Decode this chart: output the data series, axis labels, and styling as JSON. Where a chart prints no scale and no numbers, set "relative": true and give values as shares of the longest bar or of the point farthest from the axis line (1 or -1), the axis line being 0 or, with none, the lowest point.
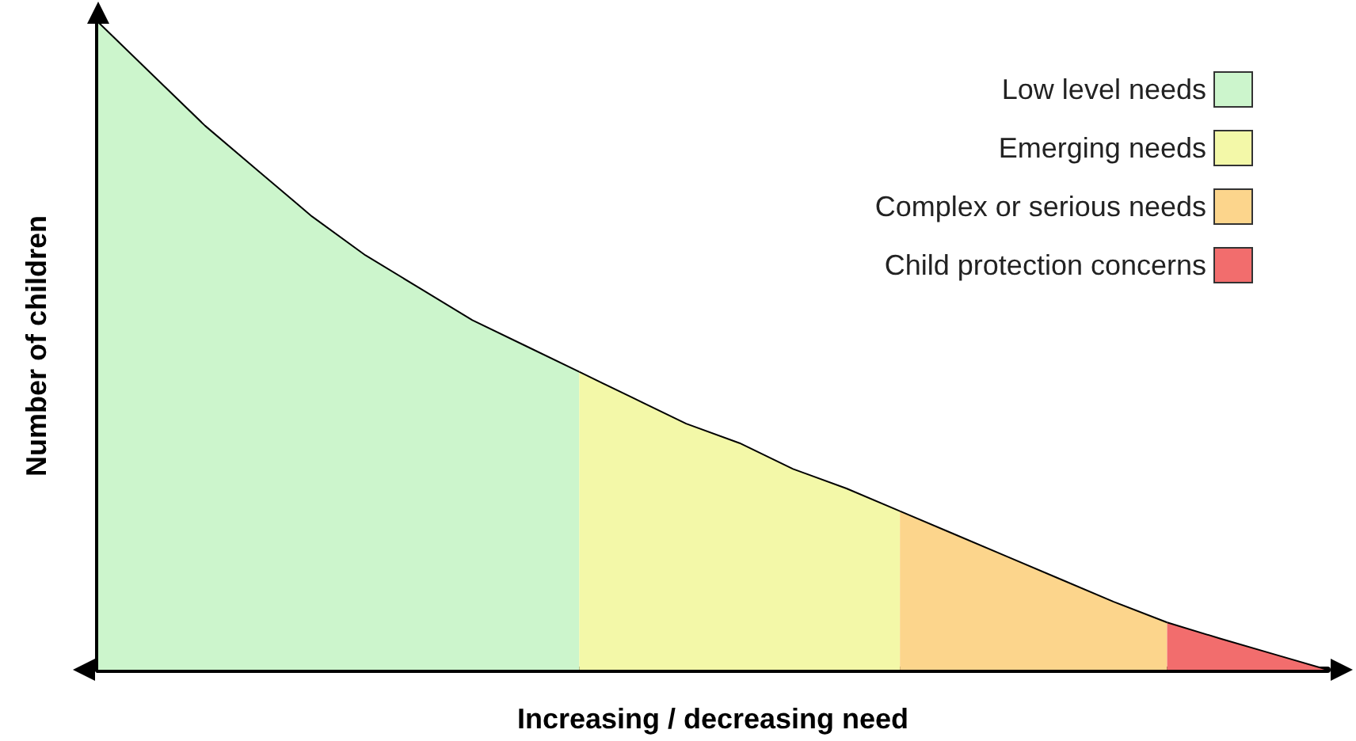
{
  "chart_data": {
    "type": "area",
    "relative": true,
    "xlabel": "Increasing / decreasing need",
    "ylabel": "Number of children",
    "legend": "top right",
    "grid": false,
    "marker": "none",
    "categories": [
      null,
      null,
      null,
      null,
      null,
      null,
      null,
      null,
      null,
      null,
      null,
      null,
      null,
      null,
      null,
      null,
      null,
      null,
      null,
      null,
      null,
      null,
      null,
      null
    ],
    "series": [
      {
        "name": "Low level needs",
        "color": "#ccf5cc",
        "values": [
          1.0,
          0.92,
          0.84,
          0.77,
          0.7,
          0.64,
          0.59,
          0.54,
          0.5,
          0.46,
          null,
          null,
          null,
          null,
          null,
          null,
          null,
          null,
          null,
          null,
          null,
          null,
          null,
          null
        ]
      },
      {
        "name": "Emerging needs",
        "color": "#f3f8a8",
        "values": [
          null,
          null,
          null,
          null,
          null,
          null,
          null,
          null,
          null,
          0.46,
          0.42,
          0.38,
          0.35,
          0.31,
          0.28,
          0.245,
          null,
          null,
          null,
          null,
          null,
          null,
          null,
          null
        ]
      },
      {
        "name": "Complex or serious needs",
        "color": "#fcd58c",
        "values": [
          null,
          null,
          null,
          null,
          null,
          null,
          null,
          null,
          null,
          null,
          null,
          null,
          null,
          null,
          null,
          0.245,
          0.21,
          0.175,
          0.14,
          0.105,
          0.073,
          null,
          null,
          null
        ]
      },
      {
        "name": "Child protection concerns",
        "color": "#f26d6d",
        "values": [
          null,
          null,
          null,
          null,
          null,
          null,
          null,
          null,
          null,
          null,
          null,
          null,
          null,
          null,
          null,
          null,
          null,
          null,
          null,
          null,
          0.073,
          0.048,
          0.024,
          0
        ]
      }
    ]
  }
}
